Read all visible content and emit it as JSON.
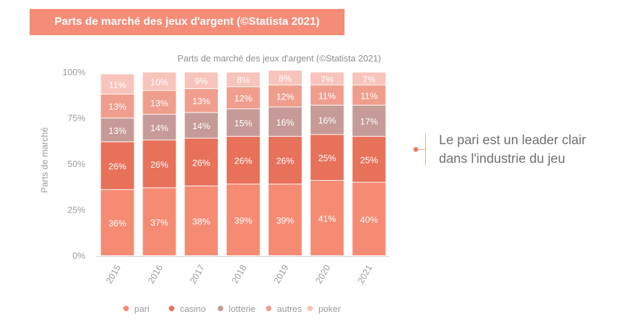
{
  "banner": {
    "title": "Parts de marché des jeux d'argent (©Statista 2021)"
  },
  "callout": {
    "text": "Le pari est un leader clair dans l'industrie du jeu"
  },
  "colors": {
    "pari": "#f58b73",
    "casino": "#e8715a",
    "lotterie": "#c69b97",
    "autres": "#ef9e8d",
    "poker": "#f7c4bb"
  },
  "chart_data": {
    "type": "bar",
    "stacked": true,
    "title": "Parts de marché des jeux d'argent (©Statista 2021)",
    "xlabel": "",
    "ylabel": "Parts de marché",
    "ylim": [
      0,
      100
    ],
    "yticks": [
      "0%",
      "25%",
      "50%",
      "75%",
      "100%"
    ],
    "categories": [
      "2015",
      "2016",
      "2017",
      "2018",
      "2019",
      "2020",
      "2021"
    ],
    "series": [
      {
        "name": "pari",
        "values": [
          36,
          37,
          38,
          39,
          39,
          41,
          40
        ]
      },
      {
        "name": "casino",
        "values": [
          26,
          26,
          26,
          26,
          26,
          25,
          25
        ]
      },
      {
        "name": "lotterie",
        "values": [
          13,
          14,
          14,
          15,
          16,
          16,
          17
        ]
      },
      {
        "name": "autres",
        "values": [
          13,
          13,
          13,
          12,
          12,
          11,
          11
        ]
      },
      {
        "name": "poker",
        "values": [
          11,
          10,
          9,
          8,
          8,
          7,
          7
        ]
      }
    ],
    "legend_position": "bottom"
  }
}
